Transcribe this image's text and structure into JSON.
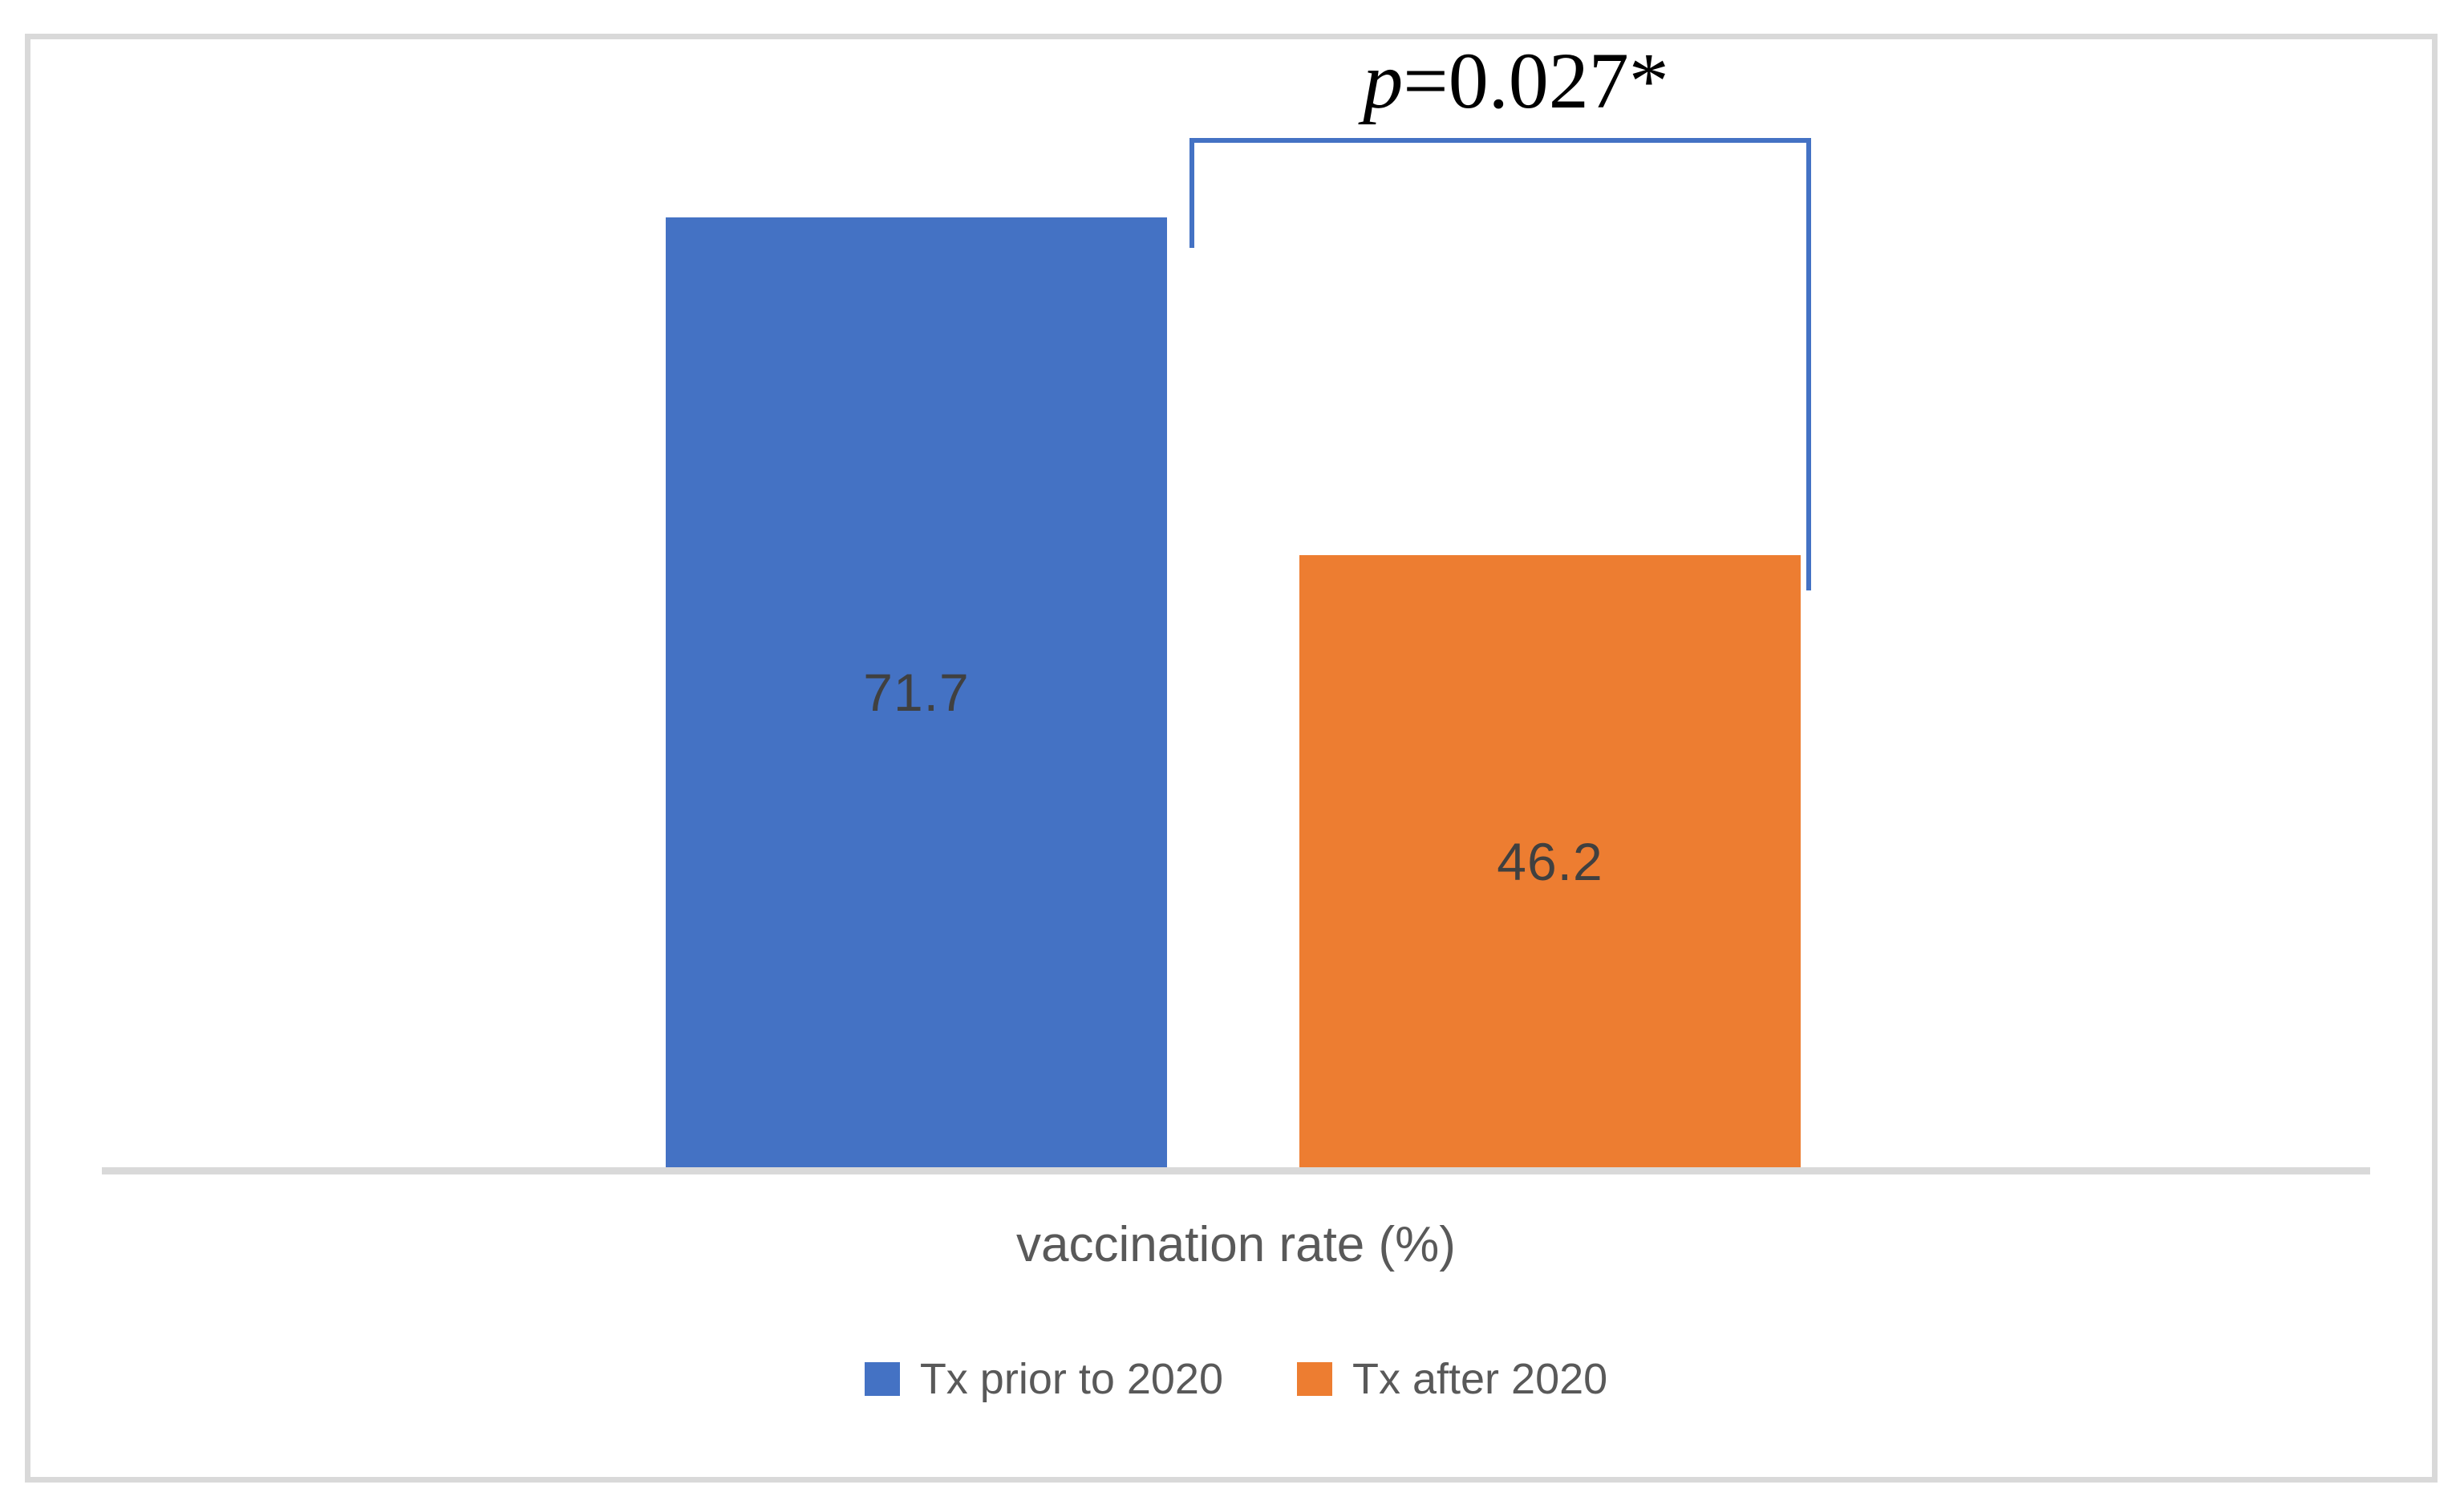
{
  "figure": {
    "background": "#FFFFFF",
    "border_color": "#D9D9D9",
    "axis_line_color": "#D9D9D9",
    "bar_label_color": "#404040",
    "text_color": "#595959",
    "bracket_color": "#4472C4"
  },
  "chart_data": {
    "type": "bar",
    "categories": [
      "vaccination rate (%)"
    ],
    "series": [
      {
        "name": "Tx prior to 2020",
        "values": [
          71.7
        ],
        "color": "#4472C4"
      },
      {
        "name": "Tx after 2020",
        "values": [
          46.2
        ],
        "color": "#ED7D31"
      }
    ],
    "title": "",
    "xlabel": "vaccination rate (%)",
    "ylabel": "",
    "ylim": [
      0,
      80
    ],
    "grid": false,
    "y_axis_visible": false,
    "data_labels": "center",
    "legend_position": "bottom",
    "annotations": [
      {
        "type": "significance-bracket",
        "text": "p=0.027*",
        "connects": [
          "Tx prior to 2020",
          "Tx after 2020"
        ]
      }
    ]
  },
  "annotation": {
    "p_symbol": "p",
    "p_rest": "=0.027*",
    "full": "p=0.027*"
  }
}
